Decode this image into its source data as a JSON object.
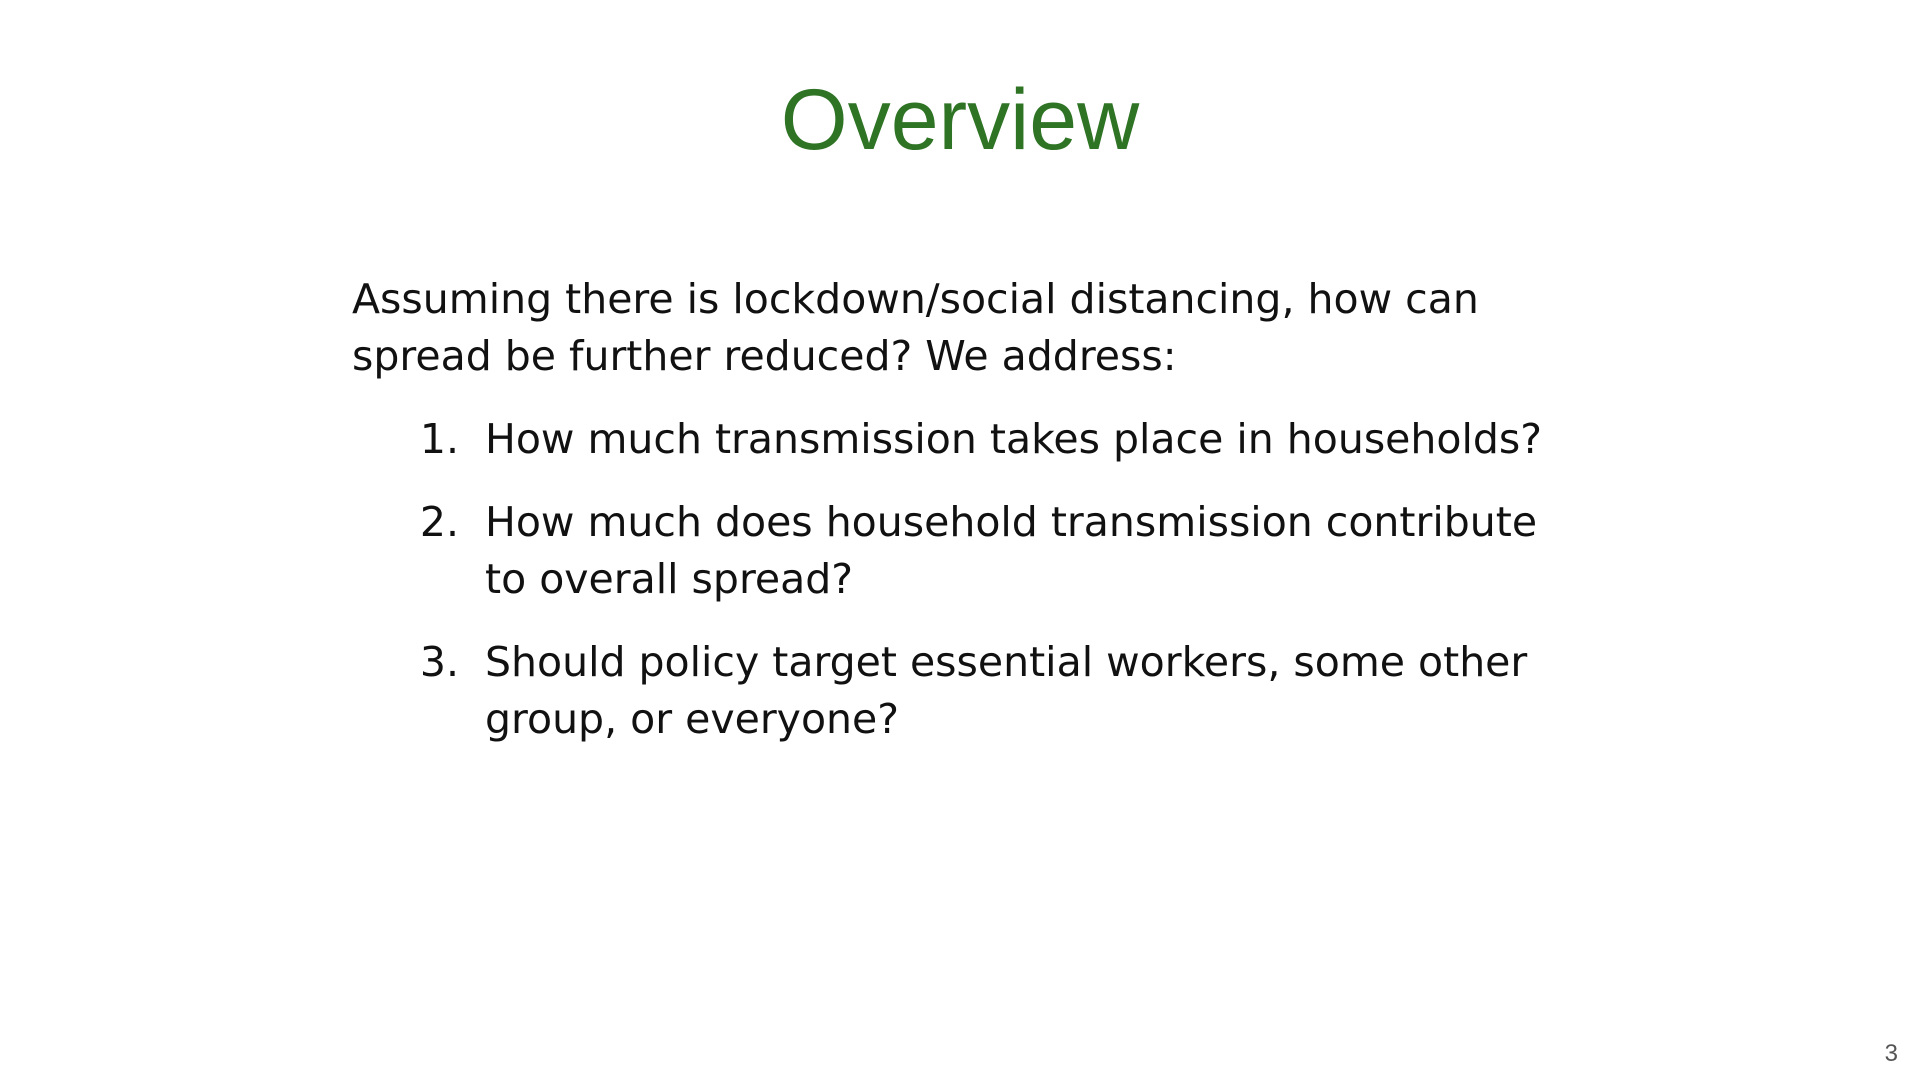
{
  "slide": {
    "title": "Overview",
    "intro": "Assuming there is lockdown/social distancing, how can spread be further reduced? We address:",
    "questions": [
      {
        "number": "1.",
        "text": "How much transmission takes place in households?"
      },
      {
        "number": "2.",
        "text": "How much does household transmission contribute to overall spread?"
      },
      {
        "number": "3.",
        "text": "Should policy target essential workers, some other group, or everyone?"
      }
    ],
    "page_number": "3"
  },
  "colors": {
    "title": "#2e7424",
    "text": "#111111",
    "background": "#ffffff"
  }
}
